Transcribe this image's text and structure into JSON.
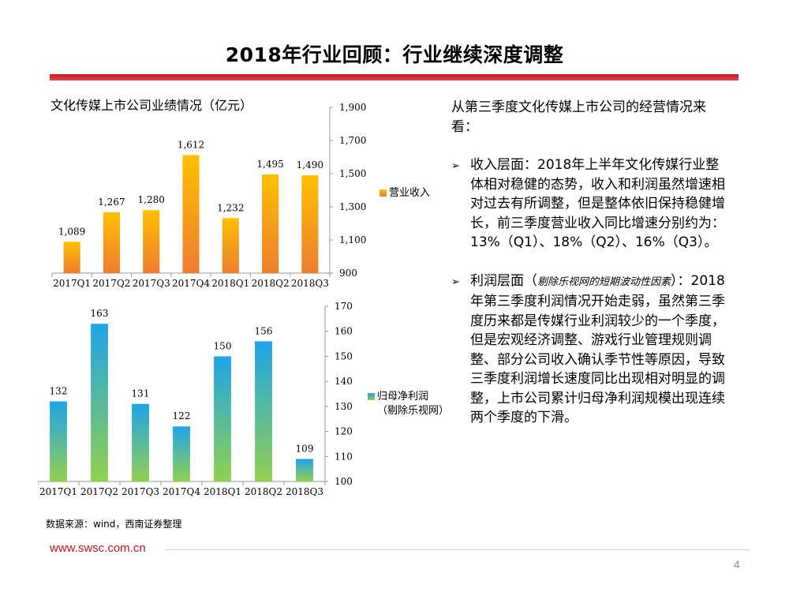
{
  "slide": {
    "title": "2018年行业回顾：行业继续深度调整",
    "page_number": "4",
    "footer_url": "www.swsc.com.cn",
    "accent_color": "#c4161c"
  },
  "source_note": "数据来源：wind，西南证券整理",
  "text": {
    "intro": "从第三季度文化传媒上市公司的经营情况来看：",
    "bullets": [
      {
        "icon": "arrow-bullet-icon",
        "before": "收入层面：2018年上半年文化传媒行业整体相对稳健的态势，收入和利润虽然增速相对过去有所调整，但是整体依旧保持稳健增长，前三季度营业收入同比增速分别约为：13%（Q1）、18%（Q2）、16%（Q3）。",
        "note": "",
        "after": ""
      },
      {
        "icon": "arrow-bullet-icon",
        "before": "利润层面（",
        "note": "剔除乐视网的短期波动性因素",
        "after": "）：2018年第三季度利润情况开始走弱，虽然第三季度历来都是传媒行业利润较少的一个季度，但是宏观经济调整、游戏行业管理规则调整、部分公司收入确认季节性等原因，导致三季度利润增长速度同比出现相对明显的调整，上市公司累计归母净利润规模出现连续两个季度的下滑。"
      }
    ]
  },
  "chart_data": [
    {
      "type": "bar",
      "title": "文化传媒上市公司业绩情况（亿元）",
      "categories": [
        "2017Q1",
        "2017Q2",
        "2017Q3",
        "2017Q4",
        "2018Q1",
        "2018Q2",
        "2018Q3"
      ],
      "series": [
        {
          "name": "营业收入",
          "values": [
            1089,
            1267,
            1280,
            1612,
            1232,
            1495,
            1490
          ],
          "labels": [
            "1,089",
            "1,267",
            "1,280",
            "1,612",
            "1,232",
            "1,495",
            "1,490"
          ]
        }
      ],
      "ylim": [
        900,
        1900
      ],
      "yticks": [
        "900",
        "1,100",
        "1,300",
        "1,500",
        "1,700",
        "1,900"
      ],
      "yaxis_side": "right",
      "colors": [
        "#ffc000",
        "#ed7d31"
      ]
    },
    {
      "type": "bar",
      "title": "",
      "categories": [
        "2017Q1",
        "2017Q2",
        "2017Q3",
        "2017Q4",
        "2018Q1",
        "2018Q2",
        "2018Q3"
      ],
      "series": [
        {
          "name": "归母净利润",
          "name_line2": "（剔除乐视网）",
          "values": [
            132,
            163,
            131,
            122,
            150,
            156,
            109
          ],
          "labels": [
            "132",
            "163",
            "131",
            "122",
            "150",
            "156",
            "109"
          ]
        }
      ],
      "ylim": [
        100,
        170
      ],
      "yticks": [
        "100",
        "110",
        "120",
        "130",
        "140",
        "150",
        "160",
        "170"
      ],
      "yaxis_side": "right",
      "colors": [
        "#1ea5e8",
        "#92d050"
      ]
    }
  ]
}
